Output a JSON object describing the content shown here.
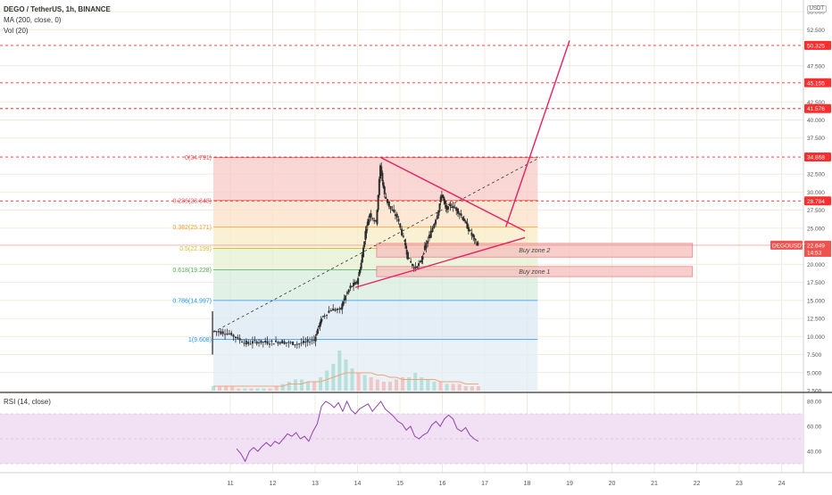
{
  "header": {
    "symbol_line": "DEGO / TetherUS, 1h, BINANCE",
    "ma_line": "MA (200, close, 0)",
    "vol_line": "Vol (20)",
    "currency": "USDT"
  },
  "rsi_pane": {
    "label": "RSI (14, close)"
  },
  "colors": {
    "bull": "#26a69a",
    "bear": "#ef5350",
    "pattern": "#e91e63",
    "hline": "#ff2d2d",
    "rsi": "#8e44ad",
    "rsi_band": "#f2e1f5"
  },
  "chart_data": [
    {
      "type": "candlestick",
      "title": "DEGO / TetherUS, 1h, BINANCE",
      "x_ticks": [
        "11",
        "12",
        "13",
        "14",
        "15",
        "16",
        "17",
        "18",
        "19",
        "20",
        "21",
        "22",
        "23",
        "24"
      ],
      "y_ticks": [
        "55.000",
        "52.500",
        "47.500",
        "42.500",
        "40.000",
        "37.500",
        "32.500",
        "30.000",
        "27.500",
        "25.000",
        "20.000",
        "17.500",
        "15.000",
        "12.500",
        "10.000",
        "7.500",
        "5.000",
        "2.500"
      ],
      "ylim": [
        2.5,
        56
      ],
      "price_levels": [
        {
          "label": "50.325",
          "value": 50.325,
          "color": "#ff2d2d",
          "style": "dashed"
        },
        {
          "label": "45.155",
          "value": 45.155,
          "color": "#ff2d2d",
          "style": "dashed"
        },
        {
          "label": "41.576",
          "value": 41.576,
          "color": "#ff2d2d",
          "style": "dashed"
        },
        {
          "label": "34.868",
          "value": 34.868,
          "color": "#ff2d2d",
          "style": "dashed"
        },
        {
          "label": "28.784",
          "value": 28.784,
          "color": "#ff2d2d",
          "style": "dashed"
        },
        {
          "label": "DEGOUSDT",
          "value": 22.649,
          "value_label": "22.649",
          "countdown": "14:53",
          "color": "#ef5350",
          "style": "solid"
        }
      ],
      "fib_levels": [
        {
          "label": "0(34.791)",
          "value": 34.791,
          "color": "#ef5350"
        },
        {
          "label": "0.236(28.848)",
          "value": 28.848,
          "color": "#ef5350"
        },
        {
          "label": "0.382(25.171)",
          "value": 25.171,
          "color": "#f0a030"
        },
        {
          "label": "0.5(22.199)",
          "value": 22.199,
          "color": "#c9c030"
        },
        {
          "label": "0.618(19.228)",
          "value": 19.228,
          "color": "#4caf50"
        },
        {
          "label": "0.786(14.997)",
          "value": 14.997,
          "color": "#2196f3"
        },
        {
          "label": "1(9.608)",
          "value": 9.608,
          "color": "#2196f3"
        }
      ],
      "fib_range_x": [
        10.6,
        18.25
      ],
      "zones": [
        {
          "label": "Buy zone 2",
          "x_from": 14.45,
          "x_to": 21.9,
          "y_from": 21.0,
          "y_to": 22.9
        },
        {
          "label": "Buy zone 1",
          "x_from": 14.45,
          "x_to": 21.9,
          "y_from": 18.3,
          "y_to": 19.7
        }
      ],
      "triangle": {
        "upper": [
          [
            14.55,
            34.8
          ],
          [
            17.95,
            24.6
          ]
        ],
        "lower": [
          [
            13.95,
            16.8
          ],
          [
            17.95,
            23.7
          ]
        ],
        "projection": [
          [
            17.5,
            25.2
          ],
          [
            19.0,
            51.0
          ]
        ]
      },
      "trendline": [
        [
          10.6,
          10.6
        ],
        [
          18.3,
          34.8
        ]
      ],
      "candle_path": [
        [
          10.6,
          10.8
        ],
        [
          10.8,
          10.6
        ],
        [
          11.0,
          10.4
        ],
        [
          11.2,
          9.7
        ],
        [
          11.4,
          9.0
        ],
        [
          11.6,
          9.3
        ],
        [
          11.8,
          9.2
        ],
        [
          12.0,
          9.2
        ],
        [
          12.2,
          9.3
        ],
        [
          12.4,
          9.1
        ],
        [
          12.6,
          9.0
        ],
        [
          12.8,
          9.2
        ],
        [
          13.0,
          9.6
        ],
        [
          13.1,
          11.5
        ],
        [
          13.2,
          12.8
        ],
        [
          13.4,
          13.8
        ],
        [
          13.6,
          13.6
        ],
        [
          13.7,
          15.2
        ],
        [
          13.85,
          16.9
        ],
        [
          14.0,
          17.5
        ],
        [
          14.1,
          20.2
        ],
        [
          14.2,
          24.5
        ],
        [
          14.3,
          27.0
        ],
        [
          14.45,
          25.8
        ],
        [
          14.55,
          33.6
        ],
        [
          14.65,
          29.6
        ],
        [
          14.8,
          27.6
        ],
        [
          14.95,
          26.5
        ],
        [
          15.1,
          23.5
        ],
        [
          15.2,
          21.0
        ],
        [
          15.35,
          19.4
        ],
        [
          15.5,
          20.2
        ],
        [
          15.6,
          22.3
        ],
        [
          15.75,
          24.5
        ],
        [
          15.9,
          27.0
        ],
        [
          16.0,
          29.8
        ],
        [
          16.1,
          27.6
        ],
        [
          16.2,
          28.2
        ],
        [
          16.35,
          27.6
        ],
        [
          16.5,
          26.4
        ],
        [
          16.6,
          25.2
        ],
        [
          16.75,
          23.6
        ],
        [
          16.85,
          22.6
        ]
      ],
      "volume": [
        2,
        2,
        2,
        2,
        1,
        1,
        1,
        1,
        1,
        1,
        2,
        3,
        4,
        5,
        5,
        4,
        4,
        6,
        9,
        12,
        18,
        14,
        10,
        8,
        7,
        6,
        5,
        4,
        4,
        5,
        6,
        6,
        8,
        6,
        5,
        4,
        4,
        3,
        3,
        3,
        2,
        2,
        2
      ],
      "volume_ma": [
        2,
        2,
        2,
        2,
        2,
        2,
        2,
        2,
        2,
        2,
        2,
        2,
        3,
        3,
        3,
        4,
        4,
        4,
        5,
        6,
        7,
        8,
        8,
        8,
        8,
        8,
        7,
        7,
        6,
        6,
        5,
        5,
        5,
        5,
        5,
        5,
        4,
        4,
        4,
        4,
        3,
        3,
        3
      ]
    },
    {
      "type": "line",
      "title": "RSI (14, close)",
      "y_ticks": [
        "80.00",
        "60.00",
        "40.00"
      ],
      "ylim": [
        28,
        85
      ],
      "band": [
        30,
        70
      ],
      "series": [
        {
          "name": "RSI (14, close)",
          "x": [
            11.15,
            11.25,
            11.35,
            11.45,
            11.55,
            11.65,
            11.75,
            11.85,
            11.95,
            12.05,
            12.15,
            12.25,
            12.35,
            12.45,
            12.55,
            12.65,
            12.75,
            12.85,
            12.95,
            13.05,
            13.15,
            13.25,
            13.35,
            13.45,
            13.55,
            13.65,
            13.75,
            13.85,
            13.95,
            14.05,
            14.15,
            14.25,
            14.35,
            14.45,
            14.55,
            14.65,
            14.75,
            14.85,
            14.95,
            15.05,
            15.15,
            15.25,
            15.35,
            15.45,
            15.55,
            15.65,
            15.75,
            15.85,
            15.95,
            16.05,
            16.15,
            16.25,
            16.35,
            16.45,
            16.55,
            16.65,
            16.75,
            16.85
          ],
          "y": [
            42,
            38,
            32,
            40,
            43,
            40,
            44,
            47,
            44,
            48,
            46,
            50,
            54,
            52,
            55,
            50,
            52,
            48,
            56,
            62,
            76,
            80,
            78,
            75,
            79,
            72,
            80,
            73,
            70,
            74,
            76,
            78,
            72,
            76,
            80,
            74,
            71,
            68,
            64,
            62,
            57,
            60,
            52,
            50,
            53,
            55,
            61,
            64,
            60,
            66,
            69,
            66,
            58,
            56,
            59,
            53,
            50,
            48
          ]
        }
      ]
    }
  ]
}
